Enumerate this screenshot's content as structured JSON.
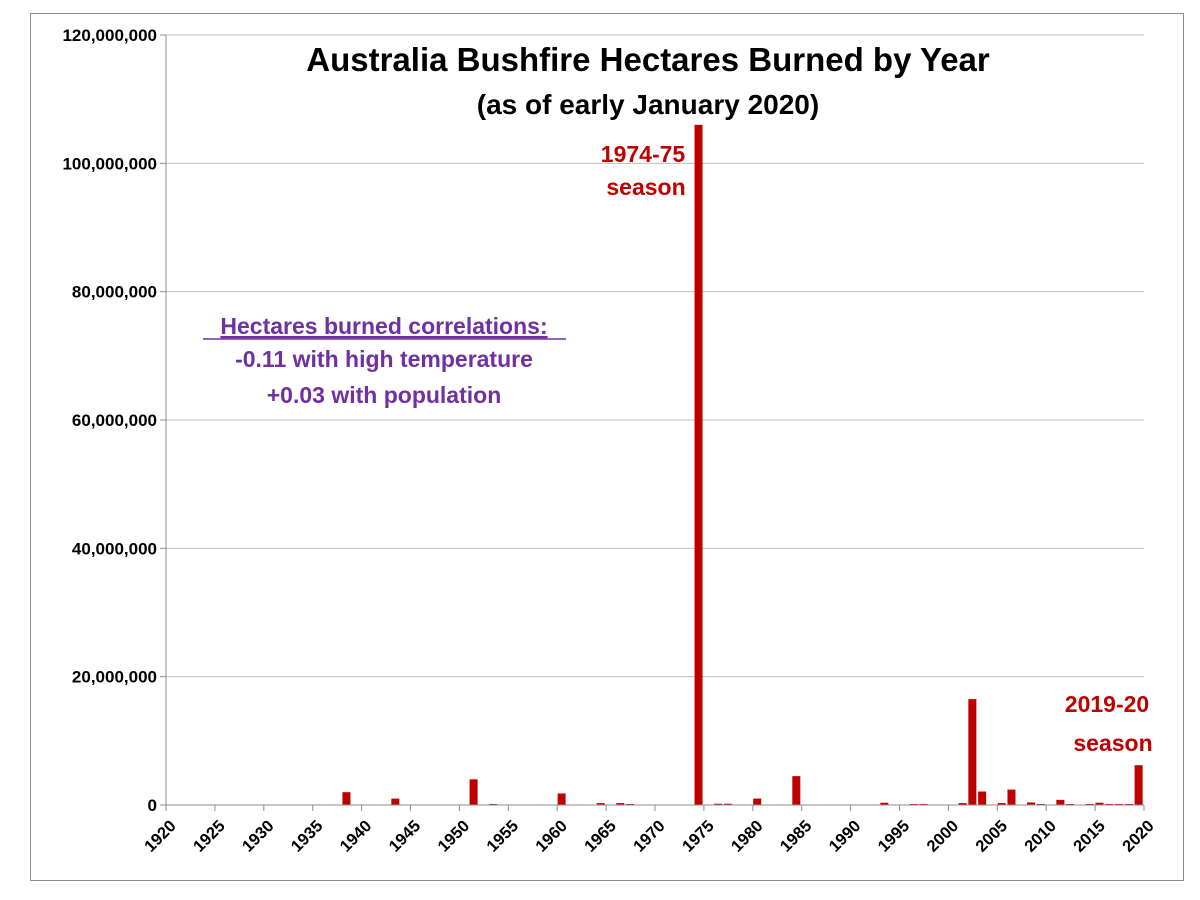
{
  "chart_data": {
    "type": "bar",
    "title": "Australia Bushfire Hectares Burned by Year",
    "subtitle": "(as of early January 2020)",
    "xlabel": "",
    "ylabel": "",
    "xlim": [
      1920,
      2020
    ],
    "ylim": [
      0,
      120000000
    ],
    "y_ticks": [
      {
        "value": 0,
        "label": "0"
      },
      {
        "value": 20000000,
        "label": "20,000,000"
      },
      {
        "value": 40000000,
        "label": "40,000,000"
      },
      {
        "value": 60000000,
        "label": "60,000,000"
      },
      {
        "value": 80000000,
        "label": "80,000,000"
      },
      {
        "value": 100000000,
        "label": "100,000,000"
      },
      {
        "value": 120000000,
        "label": "120,000,000"
      }
    ],
    "x_ticks": [
      "1920",
      "1925",
      "1930",
      "1935",
      "1940",
      "1945",
      "1950",
      "1955",
      "1960",
      "1965",
      "1970",
      "1975",
      "1980",
      "1985",
      "1990",
      "1995",
      "2000",
      "2005",
      "2010",
      "2015",
      "2020"
    ],
    "grid": true,
    "bar_color": "#c00000",
    "data": [
      {
        "x": 1939,
        "y": 2000000
      },
      {
        "x": 1944,
        "y": 1000000
      },
      {
        "x": 1952,
        "y": 4000000
      },
      {
        "x": 1954,
        "y": 150000
      },
      {
        "x": 1961,
        "y": 1800000
      },
      {
        "x": 1965,
        "y": 300000
      },
      {
        "x": 1967,
        "y": 300000
      },
      {
        "x": 1968,
        "y": 150000
      },
      {
        "x": 1975,
        "y": 106000000
      },
      {
        "x": 1977,
        "y": 200000
      },
      {
        "x": 1978,
        "y": 200000
      },
      {
        "x": 1981,
        "y": 1000000
      },
      {
        "x": 1985,
        "y": 4500000
      },
      {
        "x": 1994,
        "y": 350000
      },
      {
        "x": 1997,
        "y": 150000
      },
      {
        "x": 1998,
        "y": 150000
      },
      {
        "x": 2002,
        "y": 300000
      },
      {
        "x": 2003,
        "y": 16500000
      },
      {
        "x": 2004,
        "y": 2100000
      },
      {
        "x": 2006,
        "y": 300000
      },
      {
        "x": 2007,
        "y": 2400000
      },
      {
        "x": 2009,
        "y": 400000
      },
      {
        "x": 2010,
        "y": 100000
      },
      {
        "x": 2012,
        "y": 800000
      },
      {
        "x": 2013,
        "y": 150000
      },
      {
        "x": 2015,
        "y": 150000
      },
      {
        "x": 2016,
        "y": 350000
      },
      {
        "x": 2017,
        "y": 150000
      },
      {
        "x": 2018,
        "y": 150000
      },
      {
        "x": 2019,
        "y": 150000
      },
      {
        "x": 2020,
        "y": 6200000
      }
    ],
    "annotations": [
      {
        "lines": [
          "1974-75",
          "season"
        ],
        "color": "#c00000"
      },
      {
        "lines": [
          "2019-20",
          "season"
        ],
        "color": "#c00000"
      },
      {
        "lines": [
          "Hectares burned correlations:",
          "-0.11 with high temperature",
          "+0.03 with population"
        ],
        "color": "#7030a0"
      }
    ]
  }
}
